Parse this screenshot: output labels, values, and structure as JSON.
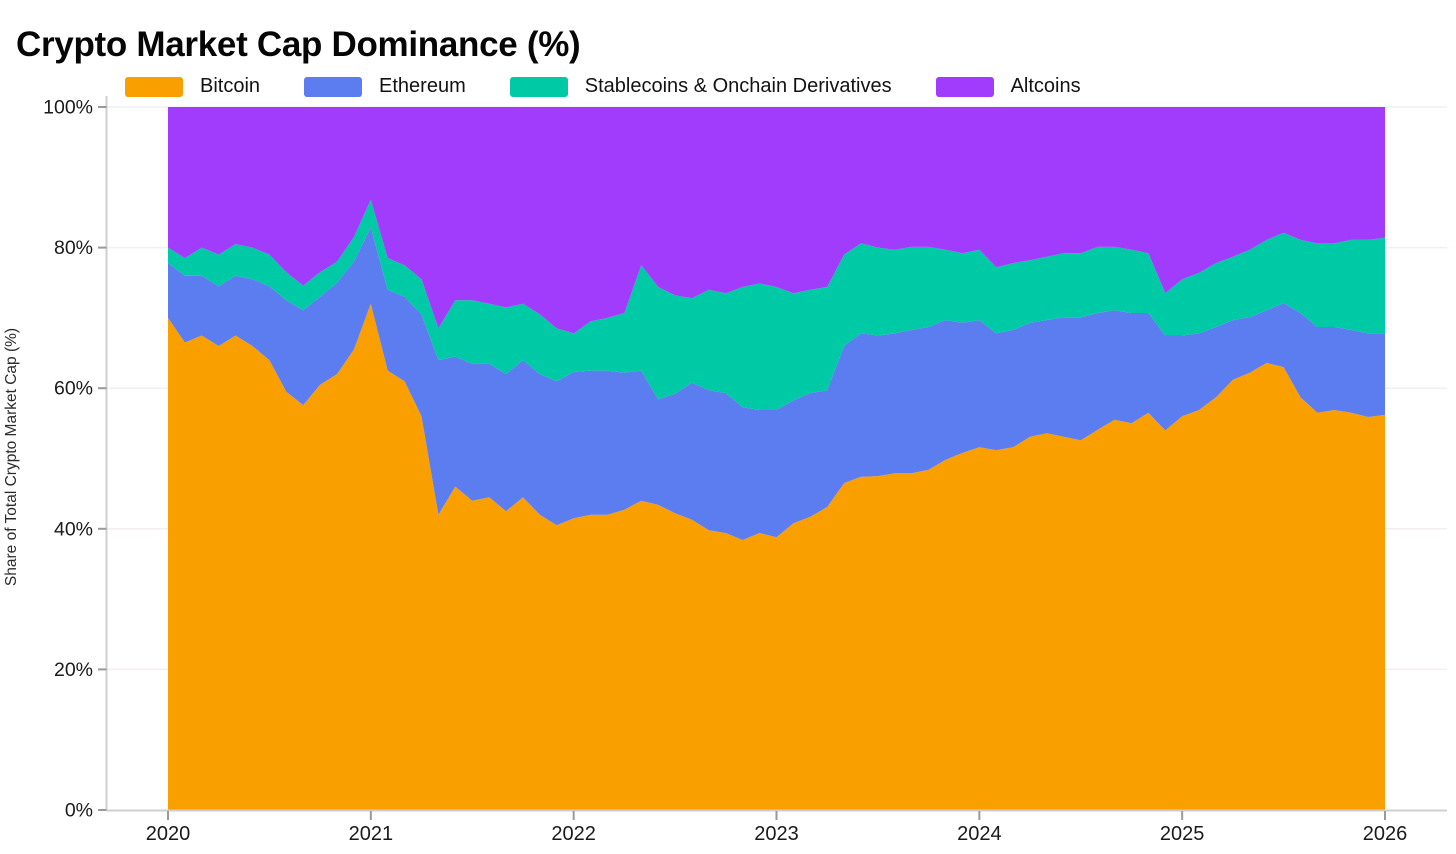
{
  "title": "Crypto Market Cap Dominance (%)",
  "y_axis": {
    "title": "Share of Total Crypto Market Cap (%)",
    "tick_labels": [
      "0%",
      "20%",
      "40%",
      "60%",
      "80%",
      "100%"
    ]
  },
  "x_axis": {
    "tick_labels": [
      "2020",
      "2021",
      "2022",
      "2023",
      "2024",
      "2025",
      "2026"
    ]
  },
  "chart_data": {
    "type": "area",
    "stacked": true,
    "title": "Crypto Market Cap Dominance (%)",
    "ylabel": "Share of Total Crypto Market Cap (%)",
    "xlabel": "",
    "ylim": [
      0,
      100
    ],
    "y_ticks": [
      0,
      20,
      40,
      60,
      80,
      100
    ],
    "x_ticks": [
      "2020",
      "2021",
      "2022",
      "2023",
      "2024",
      "2025",
      "2026"
    ],
    "legend_position": "top",
    "grid": "faint-horizontal",
    "x": [
      "2020-01",
      "2020-02",
      "2020-03",
      "2020-04",
      "2020-05",
      "2020-06",
      "2020-07",
      "2020-08",
      "2020-09",
      "2020-10",
      "2020-11",
      "2020-12",
      "2021-01",
      "2021-02",
      "2021-03",
      "2021-04",
      "2021-05",
      "2021-06",
      "2021-07",
      "2021-08",
      "2021-09",
      "2021-10",
      "2021-11",
      "2021-12",
      "2022-01",
      "2022-02",
      "2022-03",
      "2022-04",
      "2022-05",
      "2022-06",
      "2022-07",
      "2022-08",
      "2022-09",
      "2022-10",
      "2022-11",
      "2022-12",
      "2023-01",
      "2023-02",
      "2023-03",
      "2023-04",
      "2023-05",
      "2023-06",
      "2023-07",
      "2023-08",
      "2023-09",
      "2023-10",
      "2023-11",
      "2023-12",
      "2024-01",
      "2024-02",
      "2024-03",
      "2024-04",
      "2024-05",
      "2024-06",
      "2024-07",
      "2024-08",
      "2024-09",
      "2024-10",
      "2024-11",
      "2024-12",
      "2025-01",
      "2025-02",
      "2025-03",
      "2025-04",
      "2025-05",
      "2025-06",
      "2025-07",
      "2025-08",
      "2025-09",
      "2025-10",
      "2025-11",
      "2025-12",
      "2026-01"
    ],
    "series": [
      {
        "name": "Bitcoin",
        "color": "#F9A000",
        "values": [
          70.0,
          66.5,
          67.5,
          66.0,
          67.5,
          66.0,
          64.0,
          59.5,
          57.6,
          60.5,
          62.0,
          65.5,
          72.0,
          62.5,
          61.0,
          56.0,
          42.0,
          46.0,
          44.0,
          44.5,
          42.5,
          44.5,
          42.0,
          40.5,
          41.5,
          42.0,
          42.0,
          42.7,
          44.0,
          43.4,
          42.2,
          41.3,
          39.8,
          39.4,
          38.4,
          39.4,
          38.8,
          40.8,
          41.7,
          43.1,
          46.5,
          47.4,
          47.5,
          47.9,
          47.9,
          48.4,
          49.8,
          50.8,
          51.6,
          51.2,
          51.6,
          53.1,
          53.6,
          53.1,
          52.6,
          54.1,
          55.5,
          55.0,
          56.5,
          54.0,
          56.0,
          56.9,
          58.7,
          61.2,
          62.2,
          63.6,
          63.0,
          58.7,
          56.5,
          56.9,
          56.5,
          55.9,
          56.2
        ]
      },
      {
        "name": "Ethereum",
        "color": "#5B7DF0",
        "values": [
          7.8,
          9.5,
          8.5,
          8.5,
          8.5,
          9.5,
          10.5,
          13.0,
          13.5,
          12.5,
          13.0,
          12.5,
          10.9,
          11.5,
          12.0,
          14.5,
          22.0,
          18.5,
          19.5,
          19.0,
          19.5,
          19.5,
          20.0,
          20.5,
          20.8,
          20.5,
          20.5,
          19.5,
          18.5,
          15.0,
          17.0,
          19.5,
          19.9,
          19.9,
          18.9,
          17.5,
          18.1,
          17.5,
          17.6,
          16.6,
          19.5,
          20.4,
          20.0,
          19.9,
          20.4,
          20.3,
          19.9,
          18.5,
          18.1,
          16.6,
          16.7,
          16.2,
          16.1,
          17.0,
          17.5,
          16.6,
          15.6,
          15.7,
          14.2,
          13.5,
          11.5,
          10.9,
          10.0,
          8.5,
          7.9,
          7.5,
          9.1,
          12.0,
          12.2,
          11.8,
          11.8,
          11.9,
          11.6
        ]
      },
      {
        "name": "Stablecoins & Onchain Derivatives",
        "color": "#00C9A5",
        "values": [
          2.2,
          2.5,
          4.0,
          4.5,
          4.5,
          4.5,
          4.5,
          4.0,
          3.5,
          3.5,
          3.0,
          3.5,
          3.9,
          4.5,
          4.5,
          5.0,
          4.5,
          8.0,
          9.0,
          8.5,
          9.5,
          8.0,
          8.5,
          7.5,
          5.5,
          7.0,
          7.5,
          8.5,
          15.0,
          16.0,
          14.0,
          12.0,
          14.3,
          14.2,
          17.1,
          18.0,
          17.5,
          15.2,
          14.7,
          14.7,
          13.0,
          12.8,
          12.5,
          11.9,
          11.8,
          11.4,
          10.0,
          9.9,
          10.0,
          9.4,
          9.5,
          8.9,
          9.0,
          9.1,
          9.1,
          9.4,
          9.0,
          9.0,
          8.5,
          6.0,
          8.0,
          8.6,
          9.1,
          9.0,
          9.6,
          10.0,
          10.0,
          10.4,
          11.9,
          11.9,
          12.8,
          13.3,
          13.6
        ]
      },
      {
        "name": "Altcoins",
        "color": "#A23CFC",
        "values": [
          20.0,
          21.5,
          20.0,
          21.0,
          19.5,
          20.0,
          21.0,
          23.5,
          25.4,
          23.5,
          22.0,
          18.5,
          13.2,
          21.5,
          22.5,
          24.5,
          31.5,
          27.5,
          27.5,
          28.0,
          28.5,
          28.0,
          29.5,
          31.5,
          32.2,
          30.5,
          30.0,
          29.3,
          22.5,
          25.6,
          26.8,
          27.2,
          26.0,
          26.5,
          25.6,
          25.1,
          25.6,
          26.5,
          26.0,
          25.6,
          21.0,
          19.4,
          20.0,
          20.3,
          19.9,
          19.9,
          20.3,
          20.8,
          20.3,
          22.8,
          22.2,
          21.8,
          21.3,
          20.8,
          20.8,
          19.9,
          19.9,
          20.3,
          20.8,
          26.5,
          24.5,
          23.6,
          22.2,
          21.3,
          20.3,
          18.9,
          17.9,
          18.9,
          19.4,
          19.4,
          18.9,
          18.9,
          18.6
        ]
      }
    ]
  },
  "style": {
    "axis_line_color": "#cfcfcf",
    "tick_color": "#9a9a9a",
    "grid_color": "#f4eef4",
    "text_color": "#1a1a1a"
  }
}
